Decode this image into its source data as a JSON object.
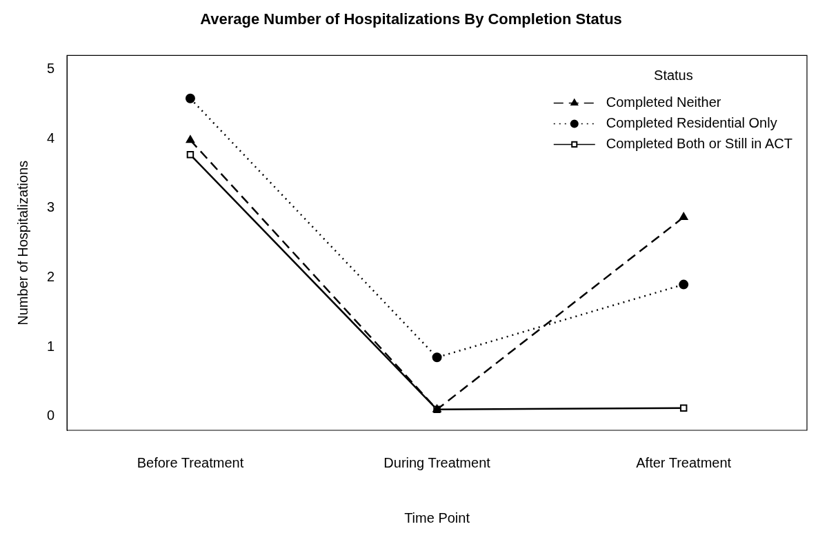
{
  "chart_data": {
    "type": "line",
    "title": "Average Number of Hospitalizations By Completion Status",
    "xlabel": "Time Point",
    "ylabel": "Number of Hospitalizations",
    "legend_title": "Status",
    "legend": "top right",
    "grid": false,
    "categories": [
      "Before Treatment",
      "During Treatment",
      "After Treatment"
    ],
    "ylim": [
      -0.2,
      5.2
    ],
    "yticks": [
      0,
      1,
      2,
      3,
      4,
      5
    ],
    "series": [
      {
        "name": "Completed Neither",
        "color": "#000000",
        "marker": "triangle",
        "line_style": "dashed",
        "values": [
          3.98,
          0.1,
          2.87
        ]
      },
      {
        "name": "Completed Residential Only",
        "color": "#000000",
        "marker": "circle",
        "line_style": "dotted",
        "values": [
          4.58,
          0.85,
          1.9
        ]
      },
      {
        "name": "Completed Both or Still in ACT",
        "color": "#000000",
        "marker": "square",
        "line_style": "solid",
        "values": [
          3.77,
          0.1,
          0.12
        ]
      }
    ]
  }
}
